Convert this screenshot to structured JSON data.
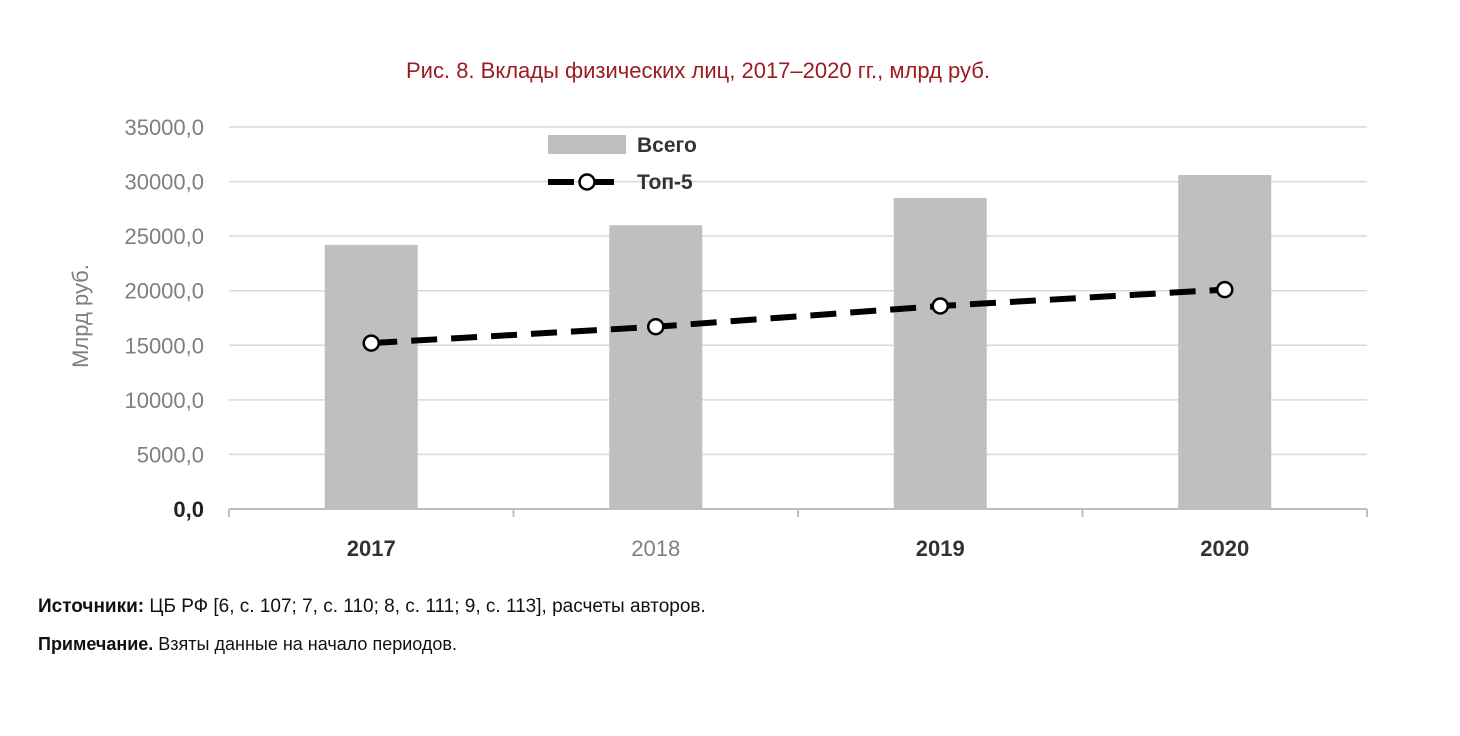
{
  "figure_title": "Рис. 8. Вклады физических лиц, 2017–2020 гг., млрд руб.",
  "chart_data": {
    "type": "bar",
    "title": "Рис. 8. Вклады физических лиц, 2017–2020 гг., млрд руб.",
    "xlabel": "",
    "ylabel": "Млрд руб.",
    "categories": [
      "2017",
      "2018",
      "2019",
      "2020"
    ],
    "ylim": [
      0,
      35000
    ],
    "yticks": [
      "0,0",
      "5000,0",
      "10000,0",
      "15000,0",
      "20000,0",
      "25000,0",
      "30000,0",
      "35000,0"
    ],
    "series": [
      {
        "name": "Всего",
        "kind": "bar",
        "values": [
          24200,
          26000,
          28500,
          30600
        ],
        "color": "#bfbfbf"
      },
      {
        "name": "Топ-5",
        "kind": "line",
        "style": "dashed",
        "marker": "circle-open",
        "values": [
          15200,
          16700,
          18600,
          20100
        ],
        "color": "#000000"
      }
    ],
    "grid": true,
    "legend": "top-left, inside plot"
  },
  "notes": {
    "sources_label": "Источники:",
    "sources_text": " ЦБ РФ [6, с. 107; 7, с. 110; 8, с. 111; 9, с. 113], расчеты авторов.",
    "remark_label": "Примечание.",
    "remark_text": " Взяты данные на начало периодов."
  }
}
